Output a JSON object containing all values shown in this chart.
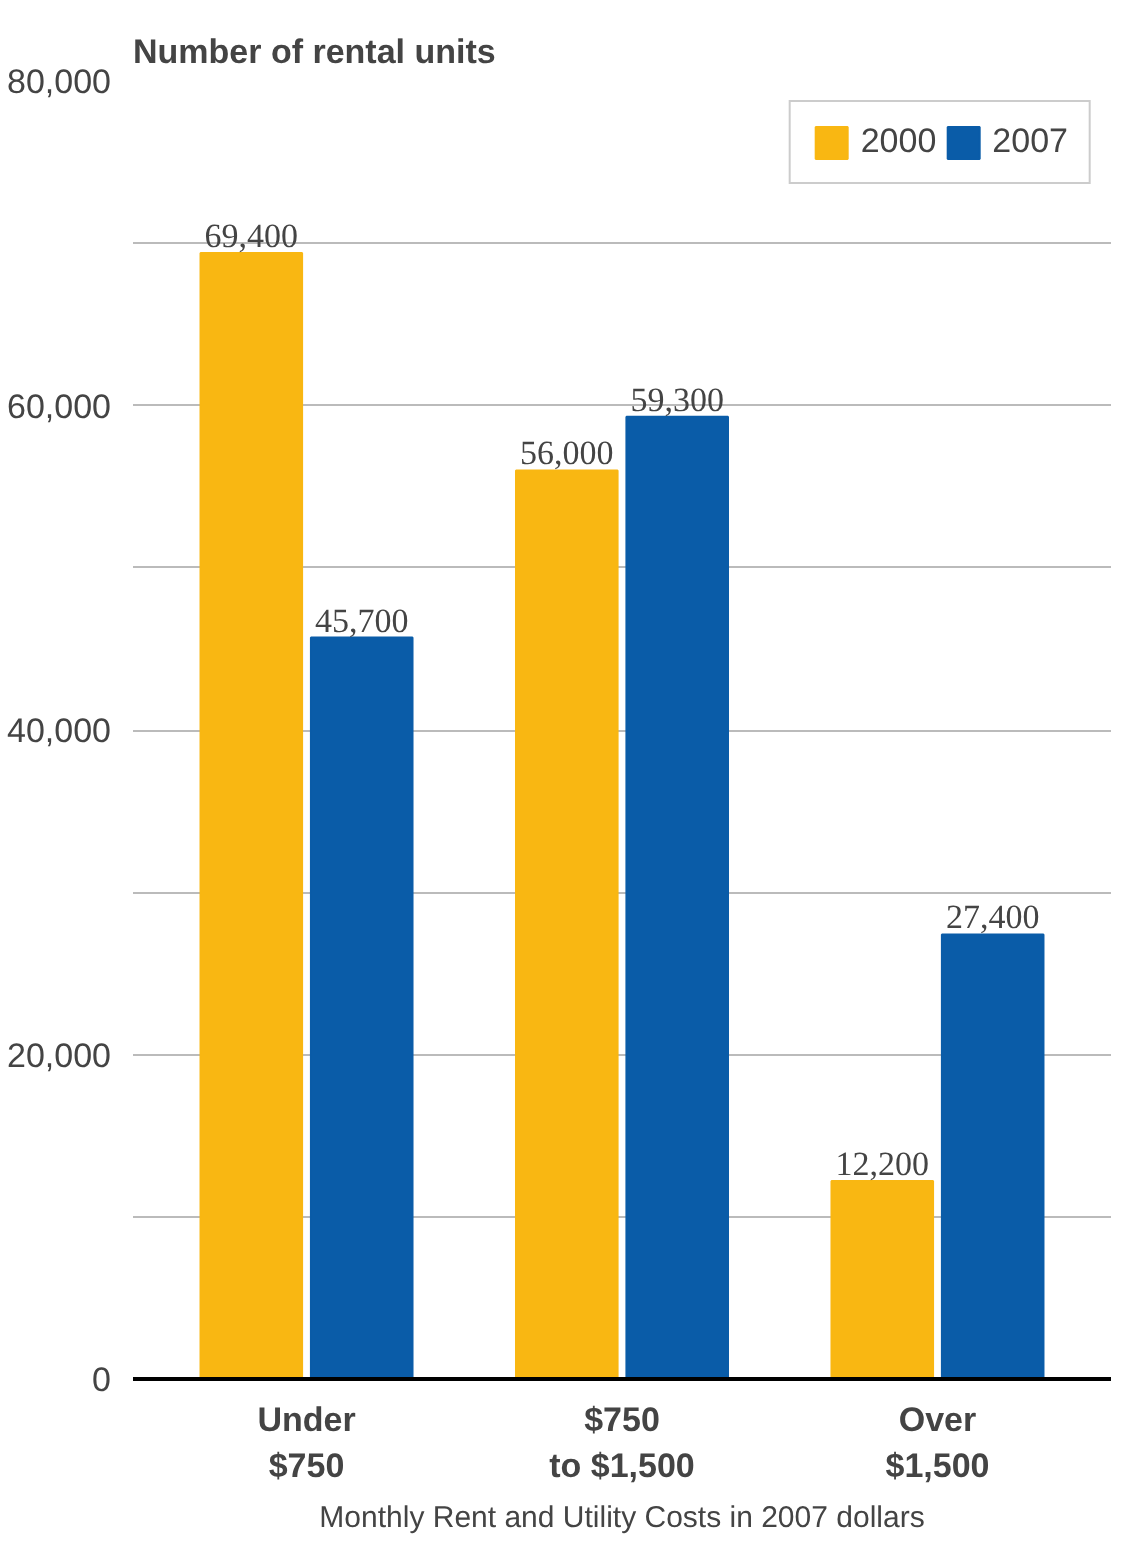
{
  "chart_data": {
    "type": "bar",
    "title": "Number of rental units",
    "xlabel": "Monthly Rent and Utility Costs in 2007 dollars",
    "categories": [
      "Under\n$750",
      "$750\nto $1,500",
      "Over\n$1,500"
    ],
    "series": [
      {
        "name": "2000",
        "color": "#f9b712",
        "values": [
          69400,
          56000,
          12200
        ],
        "value_labels": [
          "69,400",
          "56,000",
          "12,200"
        ]
      },
      {
        "name": "2007",
        "color": "#0a5ca8",
        "values": [
          45700,
          59300,
          27400
        ],
        "value_labels": [
          "45,700",
          "59,300",
          "27,400"
        ]
      }
    ],
    "ylim": [
      0,
      80000
    ],
    "yticks": [
      {
        "value": 0,
        "label": "0"
      },
      {
        "value": 10000,
        "label": null
      },
      {
        "value": 20000,
        "label": "20,000"
      },
      {
        "value": 30000,
        "label": null
      },
      {
        "value": 40000,
        "label": "40,000"
      },
      {
        "value": 50000,
        "label": null
      },
      {
        "value": 60000,
        "label": "60,000"
      },
      {
        "value": 70000,
        "label": null
      },
      {
        "value": 80000,
        "label": "80,000"
      }
    ],
    "grid": "y",
    "legend": "top right"
  }
}
